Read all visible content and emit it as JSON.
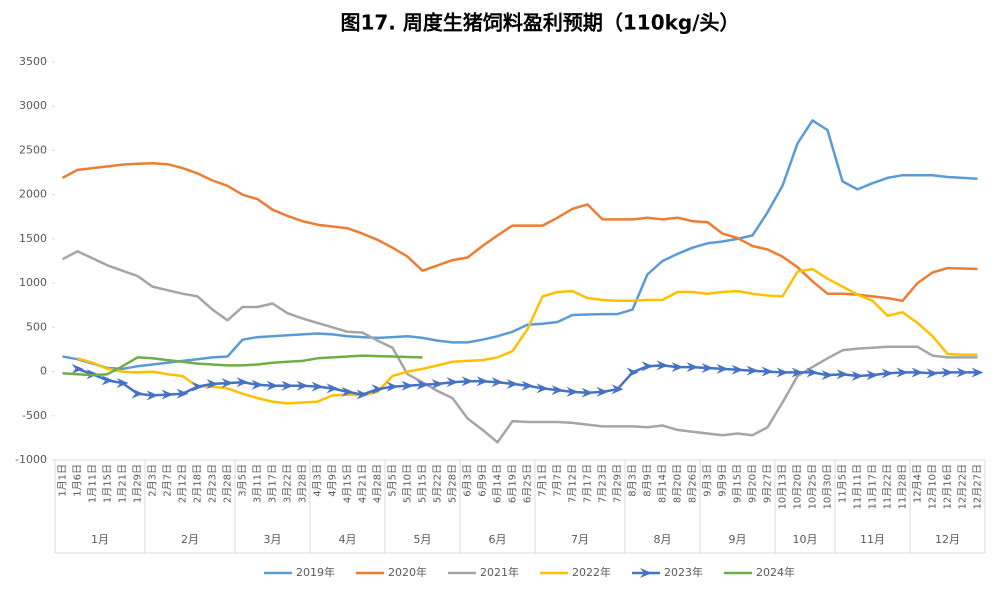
{
  "chart_data": {
    "type": "line",
    "title": "图17. 周度生猪饲料盈利预期（110kg/头）",
    "categories": [
      "1月1日",
      "1月6日",
      "1月11日",
      "1月15日",
      "1月21日",
      "1月29日",
      "2月3日",
      "2月7日",
      "2月12日",
      "2月18日",
      "2月23日",
      "2月28日",
      "3月5日",
      "3月11日",
      "3月17日",
      "3月22日",
      "3月28日",
      "4月3日",
      "4月9日",
      "4月15日",
      "4月21日",
      "4月28日",
      "5月5日",
      "5月10日",
      "5月15日",
      "5月22日",
      "5月28日",
      "6月3日",
      "6月9日",
      "6月14日",
      "6月19日",
      "6月25日",
      "7月1日",
      "7月7日",
      "7月12日",
      "7月17日",
      "7月23日",
      "7月29日",
      "8月3日",
      "8月9日",
      "8月14日",
      "8月20日",
      "8月26日",
      "9月3日",
      "9月9日",
      "9月15日",
      "9月20日",
      "9月27日",
      "10月13日",
      "10月20日",
      "10月25日",
      "10月30日",
      "11月5日",
      "11月11日",
      "11月17日",
      "11月22日",
      "11月28日",
      "12月4日",
      "12月10日",
      "12月16日",
      "12月22日",
      "12月27日"
    ],
    "months": [
      {
        "label": "1月",
        "count": 6
      },
      {
        "label": "2月",
        "count": 6
      },
      {
        "label": "3月",
        "count": 5
      },
      {
        "label": "4月",
        "count": 5
      },
      {
        "label": "5月",
        "count": 5
      },
      {
        "label": "6月",
        "count": 5
      },
      {
        "label": "7月",
        "count": 6
      },
      {
        "label": "8月",
        "count": 5
      },
      {
        "label": "9月",
        "count": 5
      },
      {
        "label": "10月",
        "count": 4
      },
      {
        "label": "11月",
        "count": 5
      },
      {
        "label": "12月",
        "count": 5
      }
    ],
    "ylim": [
      -1000,
      3500
    ],
    "yticks": [
      -1000,
      -500,
      0,
      500,
      1000,
      1500,
      2000,
      2500,
      3000,
      3500
    ],
    "grid": false,
    "legend": "bottom",
    "series": [
      {
        "name": "2019年",
        "color": "#5b9bd5",
        "values": [
          170,
          140,
          90,
          40,
          30,
          60,
          80,
          100,
          120,
          140,
          160,
          170,
          360,
          390,
          400,
          410,
          420,
          430,
          420,
          400,
          390,
          380,
          390,
          400,
          380,
          350,
          330,
          330,
          360,
          400,
          450,
          530,
          540,
          560,
          640,
          645,
          650,
          650,
          700,
          1100,
          1250,
          1330,
          1400,
          1450,
          1470,
          1500,
          1540,
          1800,
          2100,
          2580,
          2840,
          2730,
          2150,
          2060,
          2130,
          2190,
          2220,
          2220,
          2220,
          2200,
          2190,
          2180
        ]
      },
      {
        "name": "2020年",
        "color": "#ed7d31",
        "values": [
          2190,
          2280,
          2300,
          2320,
          2340,
          2350,
          2355,
          2345,
          2300,
          2240,
          2160,
          2100,
          2000,
          1950,
          1830,
          1760,
          1700,
          1660,
          1640,
          1620,
          1560,
          1490,
          1400,
          1300,
          1140,
          1200,
          1260,
          1290,
          1420,
          1540,
          1650,
          1650,
          1650,
          1740,
          1840,
          1890,
          1720,
          1720,
          1720,
          1740,
          1720,
          1740,
          1700,
          1690,
          1560,
          1510,
          1420,
          1380,
          1300,
          1180,
          1020,
          880,
          880,
          870,
          850,
          830,
          800,
          1000,
          1120,
          1170,
          1165,
          1160
        ]
      },
      {
        "name": "2021年",
        "color": "#a5a5a5",
        "values": [
          1270,
          1360,
          1280,
          1200,
          1140,
          1080,
          960,
          920,
          880,
          850,
          700,
          580,
          730,
          730,
          770,
          660,
          600,
          550,
          500,
          450,
          440,
          350,
          270,
          -30,
          -120,
          -220,
          -300,
          -530,
          -660,
          -800,
          -560,
          -570,
          -570,
          -570,
          -580,
          -600,
          -620,
          -620,
          -620,
          -630,
          -610,
          -660,
          -680,
          -700,
          -720,
          -700,
          -720,
          -630,
          -350,
          -50,
          50,
          150,
          240,
          260,
          270,
          280,
          280,
          280,
          180,
          160,
          160,
          160
        ]
      },
      {
        "name": "2022年",
        "color": "#ffc000",
        "values": [
          null,
          150,
          100,
          30,
          0,
          -10,
          0,
          -30,
          -50,
          -170,
          -170,
          -190,
          -250,
          -300,
          -340,
          -360,
          -350,
          -340,
          -270,
          -260,
          -270,
          -230,
          -50,
          0,
          30,
          70,
          110,
          120,
          130,
          160,
          230,
          480,
          850,
          900,
          910,
          830,
          810,
          800,
          800,
          810,
          810,
          900,
          900,
          880,
          900,
          910,
          880,
          860,
          850,
          1130,
          1160,
          1050,
          960,
          870,
          800,
          630,
          670,
          550,
          400,
          200,
          190,
          190
        ]
      },
      {
        "name": "2023年",
        "color": "#4472c4",
        "marker": "arrow",
        "values": [
          null,
          30,
          -30,
          -100,
          -130,
          -250,
          -270,
          -260,
          -250,
          -170,
          -140,
          -130,
          -120,
          -150,
          -160,
          -160,
          -160,
          -170,
          -190,
          -230,
          -260,
          -200,
          -170,
          -160,
          -150,
          -140,
          -120,
          -110,
          -110,
          -120,
          -140,
          -160,
          -190,
          -210,
          -230,
          -240,
          -230,
          -200,
          -10,
          60,
          70,
          50,
          50,
          40,
          30,
          20,
          10,
          0,
          -10,
          -10,
          -10,
          -40,
          -30,
          -50,
          -40,
          -20,
          -10,
          -10,
          -20,
          -10,
          -10,
          -10
        ]
      },
      {
        "name": "2024年",
        "color": "#70ad47",
        "values": [
          -20,
          -30,
          -40,
          -30,
          60,
          160,
          150,
          130,
          110,
          90,
          80,
          70,
          70,
          80,
          100,
          110,
          120,
          150,
          160,
          170,
          180,
          175,
          170,
          165,
          160,
          null,
          null,
          null,
          null,
          null,
          null,
          null,
          null,
          null,
          null,
          null,
          null,
          null,
          null,
          null,
          null,
          null,
          null,
          null,
          null,
          null,
          null,
          null,
          null,
          null,
          null,
          null,
          null,
          null,
          null,
          null,
          null,
          null,
          null,
          null,
          null,
          null
        ]
      }
    ]
  }
}
